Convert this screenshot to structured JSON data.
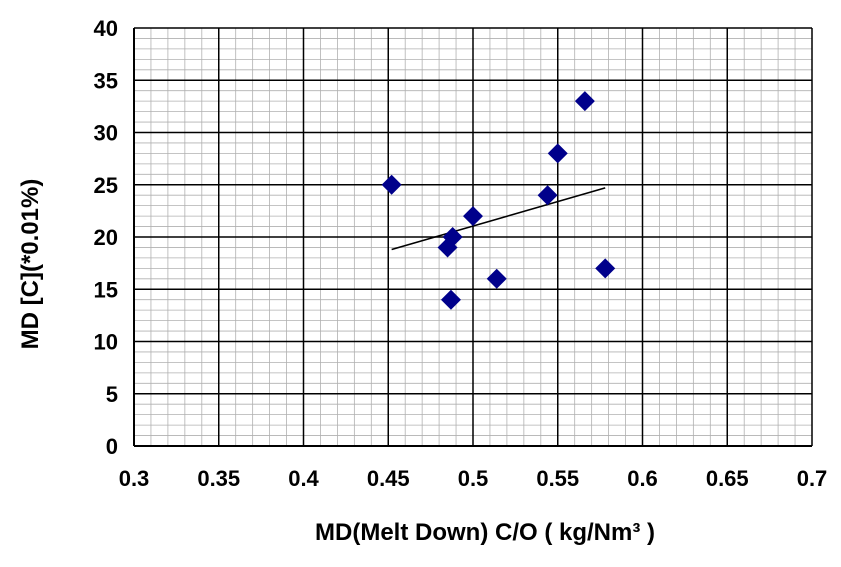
{
  "chart_data": {
    "type": "scatter",
    "title": "",
    "xlabel": "MD(Melt Down) C/O ( kg/Nm³ )",
    "ylabel": "MD [C](*0.01%)",
    "xlim": [
      0.3,
      0.7
    ],
    "ylim": [
      0,
      40
    ],
    "x_ticks": [
      "0.3",
      "0.35",
      "0.4",
      "0.45",
      "0.5",
      "0.55",
      "0.6",
      "0.65",
      "0.7"
    ],
    "y_ticks": [
      "0",
      "5",
      "10",
      "15",
      "20",
      "25",
      "30",
      "35",
      "40"
    ],
    "grid": true,
    "legend": "none",
    "series": [
      {
        "marker": "diamond",
        "color": "#00008B",
        "x": [
          0.452,
          0.485,
          0.488,
          0.487,
          0.5,
          0.514,
          0.544,
          0.55,
          0.566,
          0.578
        ],
        "y": [
          25,
          19,
          20,
          14,
          22,
          16,
          24,
          28,
          33,
          17
        ]
      }
    ],
    "trendline": {
      "type": "linear",
      "color": "#000000",
      "x": [
        0.452,
        0.578
      ],
      "y": [
        18.8,
        24.7
      ]
    }
  }
}
